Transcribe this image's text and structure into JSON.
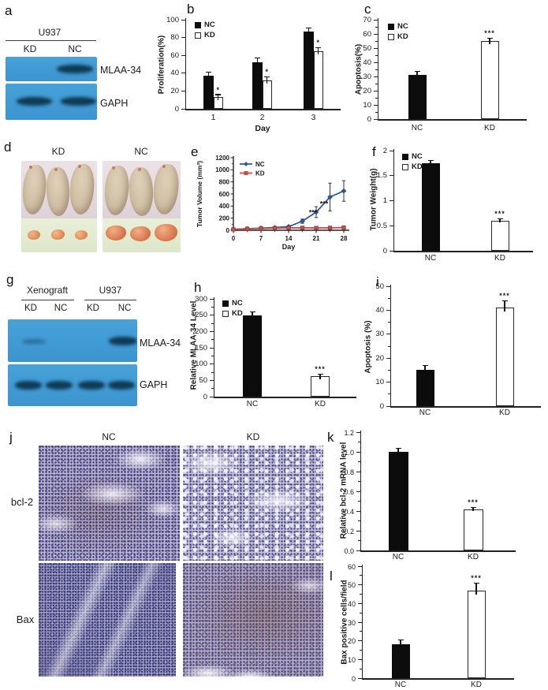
{
  "panels": {
    "a": {
      "label": "a",
      "cell_line": "U937",
      "lanes": [
        "KD",
        "NC"
      ],
      "bands": [
        "MLAA-34",
        "GAPH"
      ]
    },
    "b": {
      "label": "b"
    },
    "c": {
      "label": "c"
    },
    "d": {
      "label": "d",
      "groups": [
        "KD",
        "NC"
      ]
    },
    "e": {
      "label": "e"
    },
    "f": {
      "label": "f"
    },
    "g": {
      "label": "g",
      "tissues": [
        "Xenograft",
        "U937"
      ],
      "lanes": [
        "KD",
        "NC",
        "KD",
        "NC"
      ],
      "bands": [
        "MLAA-34",
        "GAPH"
      ]
    },
    "h": {
      "label": "h"
    },
    "i": {
      "label": "i"
    },
    "j": {
      "label": "j",
      "columns": [
        "NC",
        "KD"
      ],
      "rows": [
        "bcl-2",
        "Bax"
      ]
    },
    "k": {
      "label": "k"
    },
    "l": {
      "label": "l"
    }
  },
  "colors": {
    "blot_background": "#3f9cd6",
    "blot_band": "#0f3a55",
    "nc_series_blue": "#2f5b94",
    "kd_series_red": "#c0504d",
    "bar_black": "#0c0c0c",
    "bar_white": "#ffffff"
  },
  "chart_data": [
    {
      "id": "b",
      "type": "bar",
      "ylabel": "Proliferation(%)",
      "xlabel": "Day",
      "ylim": [
        0,
        100
      ],
      "yticks": [
        "0",
        "20",
        "40",
        "60",
        "80",
        "100"
      ],
      "categories": [
        "1",
        "2",
        "3"
      ],
      "series": [
        {
          "name": "NC",
          "fill": "black",
          "values": [
            37,
            52,
            87
          ],
          "errors": [
            4,
            5,
            4
          ],
          "sig": [
            "",
            "",
            ""
          ]
        },
        {
          "name": "KD",
          "fill": "white",
          "values": [
            13,
            32,
            65
          ],
          "errors": [
            3,
            4,
            4
          ],
          "sig": [
            "*",
            "*",
            "*"
          ]
        }
      ],
      "legend": [
        "NC",
        "KD"
      ]
    },
    {
      "id": "c",
      "type": "bar",
      "ylabel": "Apoptosis(%)",
      "xlabel": "",
      "ylim": [
        0,
        70
      ],
      "yticks": [
        "0",
        "10",
        "20",
        "30",
        "40",
        "50",
        "60",
        "70"
      ],
      "bars": [
        {
          "label": "NC",
          "value": 31,
          "error": 2.5,
          "fill": "black",
          "sig": ""
        },
        {
          "label": "KD",
          "value": 55,
          "error": 2,
          "fill": "white",
          "sig": "***"
        }
      ],
      "legend": [
        "NC",
        "KD"
      ]
    },
    {
      "id": "e",
      "type": "line",
      "ylabel": "Tumor Volume (mm³)",
      "xlabel": "Day",
      "ylim": [
        0,
        1200
      ],
      "yticks": [
        "0",
        "200",
        "400",
        "600",
        "800",
        "1000",
        "1200"
      ],
      "xticks": [
        "0",
        "7",
        "14",
        "21",
        "28"
      ],
      "x": [
        0,
        3.5,
        7,
        10.5,
        14,
        17.5,
        21,
        24.5,
        28
      ],
      "series": [
        {
          "name": "NC",
          "marker": "diamond",
          "color": "#2f5b94",
          "values": [
            15,
            25,
            35,
            45,
            60,
            150,
            300,
            550,
            650
          ],
          "errors": [
            8,
            8,
            10,
            12,
            15,
            35,
            90,
            230,
            170
          ]
        },
        {
          "name": "KD",
          "marker": "square",
          "color": "#c0504d",
          "values": [
            15,
            25,
            30,
            35,
            40,
            40,
            38,
            40,
            45
          ],
          "errors": [
            5,
            5,
            5,
            5,
            6,
            6,
            6,
            6,
            6
          ]
        }
      ],
      "annotations": [
        {
          "text": "***",
          "day": 20.2,
          "value": 255
        },
        {
          "text": "***",
          "day": 23,
          "value": 400
        }
      ]
    },
    {
      "id": "f",
      "type": "bar",
      "ylabel": "Tumor Weight(g)",
      "xlabel": "",
      "ylim": [
        0,
        2
      ],
      "yticks": [
        "0",
        "0.5",
        "1",
        "1.5",
        "2"
      ],
      "bars": [
        {
          "label": "NC",
          "value": 1.75,
          "error": 0.05,
          "fill": "black",
          "sig": ""
        },
        {
          "label": "KD",
          "value": 0.6,
          "error": 0.04,
          "fill": "white",
          "sig": "***"
        }
      ],
      "legend": [
        "NC",
        "KD"
      ]
    },
    {
      "id": "h",
      "type": "bar",
      "ylabel": "Relative MLAA-34 Level",
      "xlabel": "",
      "ylim": [
        0,
        300
      ],
      "yticks": [
        "0",
        "50",
        "100",
        "150",
        "200",
        "250",
        "300"
      ],
      "bars": [
        {
          "label": "NC",
          "value": 248,
          "error": 12,
          "fill": "black",
          "sig": ""
        },
        {
          "label": "KD",
          "value": 62,
          "error": 8,
          "fill": "white",
          "sig": "***"
        }
      ],
      "legend": [
        "NC",
        "KD"
      ]
    },
    {
      "id": "i",
      "type": "bar",
      "ylabel": "Apoptosis (%)",
      "xlabel": "",
      "ylim": [
        0,
        50
      ],
      "yticks": [
        "0",
        "10",
        "20",
        "30",
        "40",
        "50"
      ],
      "bars": [
        {
          "label": "NC",
          "value": 15,
          "error": 2,
          "fill": "black",
          "sig": ""
        },
        {
          "label": "KD",
          "value": 41,
          "error": 3,
          "fill": "white",
          "sig": "***"
        }
      ]
    },
    {
      "id": "k",
      "type": "bar",
      "ylabel": "Relative bcl-2 mRNA level",
      "xlabel": "",
      "ylim": [
        0,
        1.2
      ],
      "yticks": [
        "0.0",
        "0.2",
        "0.4",
        "0.6",
        "0.8",
        "1.0",
        "1.2"
      ],
      "bars": [
        {
          "label": "NC",
          "value": 1.0,
          "error": 0.04,
          "fill": "black",
          "sig": ""
        },
        {
          "label": "KD",
          "value": 0.42,
          "error": 0.02,
          "fill": "white",
          "sig": "***"
        }
      ]
    },
    {
      "id": "l",
      "type": "bar",
      "ylabel": "Bax positive cells/field",
      "xlabel": "",
      "ylim": [
        0,
        60
      ],
      "yticks": [
        "0",
        "10",
        "20",
        "30",
        "40",
        "50",
        "60"
      ],
      "bars": [
        {
          "label": "NC",
          "value": 18,
          "error": 2.5,
          "fill": "black",
          "sig": ""
        },
        {
          "label": "KD",
          "value": 47,
          "error": 4,
          "fill": "white",
          "sig": "***"
        }
      ]
    }
  ]
}
